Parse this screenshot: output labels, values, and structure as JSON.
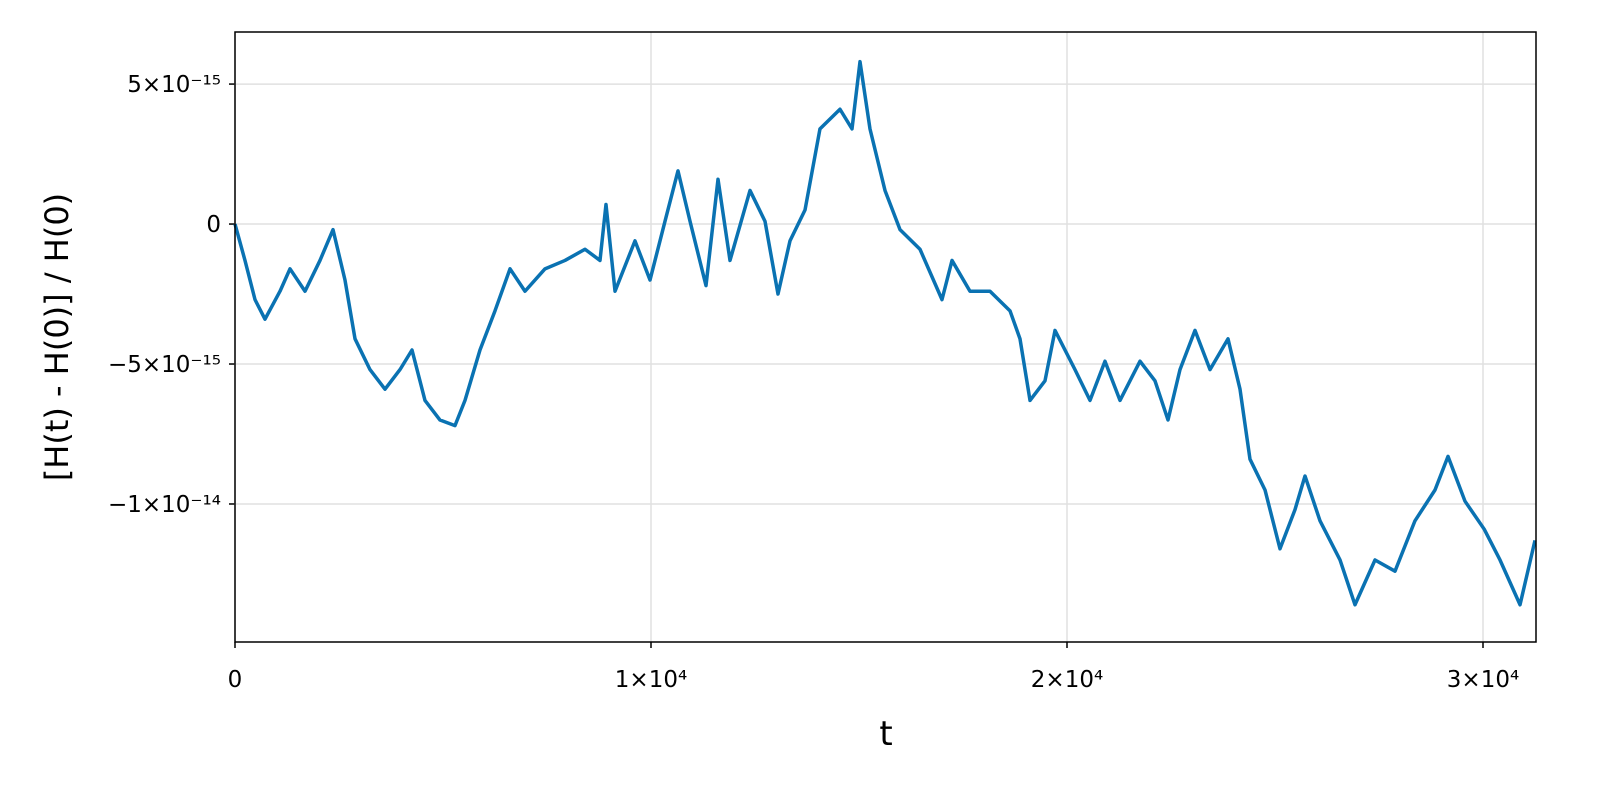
{
  "chart_data": {
    "type": "line",
    "xlabel": "t",
    "ylabel": "[H(t) - H(0)] / H(0)",
    "x": [
      0,
      240,
      481,
      721,
      1082,
      1322,
      1683,
      2043,
      2356,
      2644,
      2885,
      3245,
      3606,
      3966,
      4255,
      4567,
      4928,
      5288,
      5529,
      5889,
      6250,
      6611,
      6971,
      7452,
      7933,
      8413,
      8774,
      8918,
      9135,
      9615,
      9976,
      10337,
      10649,
      10938,
      11322,
      11611,
      11899,
      12380,
      12740,
      13053,
      13341,
      13702,
      14062,
      14543,
      14832,
      15024,
      15264,
      15625,
      15986,
      16466,
      16995,
      17236,
      17668,
      18149,
      18630,
      18870,
      19111,
      19471,
      19712,
      20192,
      20553,
      20913,
      21274,
      21755,
      22115,
      22428,
      22716,
      23077,
      23438,
      23870,
      24159,
      24399,
      24760,
      25120,
      25481,
      25721,
      26082,
      26563,
      26923,
      27404,
      27885,
      28365,
      28846,
      29159,
      29567,
      30029,
      30409,
      30890,
      31250
    ],
    "series": [
      {
        "name": "H",
        "color": "#0a72b2",
        "values": [
          0,
          -1.3e-15,
          -2.7e-15,
          -3.4e-15,
          -2.4e-15,
          -1.6e-15,
          -2.4e-15,
          -1.3e-15,
          -2e-16,
          -2e-15,
          -4.1e-15,
          -5.2e-15,
          -5.9e-15,
          -5.2e-15,
          -4.5e-15,
          -6.3e-15,
          -7e-15,
          -7.2e-15,
          -6.3e-15,
          -4.5e-15,
          -3.1e-15,
          -1.6e-15,
          -2.4e-15,
          -1.6e-15,
          -1.3e-15,
          -9e-16,
          -1.3e-15,
          7e-16,
          -2.4e-15,
          -6e-16,
          -2e-15,
          1e-16,
          1.9e-15,
          1e-16,
          -2.2e-15,
          1.6e-15,
          -1.3e-15,
          1.2e-15,
          1e-16,
          -2.5e-15,
          -6e-16,
          5e-16,
          3.4e-15,
          4.1e-15,
          3.4e-15,
          5.8e-15,
          3.4e-15,
          1.2e-15,
          -2e-16,
          -9e-16,
          -2.7e-15,
          -1.3e-15,
          -2.4e-15,
          -2.4e-15,
          -3.1e-15,
          -4.1e-15,
          -6.3e-15,
          -5.6e-15,
          -3.8e-15,
          -5.2e-15,
          -6.3e-15,
          -4.9e-15,
          -6.3e-15,
          -4.9e-15,
          -5.6e-15,
          -7e-15,
          -5.2e-15,
          -3.8e-15,
          -5.2e-15,
          -4.1e-15,
          -5.9e-15,
          -8.4e-15,
          -9.5e-15,
          -1.16e-14,
          -1.02e-14,
          -9e-15,
          -1.06e-14,
          -1.2e-14,
          -1.36e-14,
          -1.2e-14,
          -1.24e-14,
          -1.06e-14,
          -9.5e-15,
          -8.3e-15,
          -9.9e-15,
          -1.09e-14,
          -1.2e-14,
          -1.36e-14,
          -1.13e-14
        ]
      }
    ],
    "xlim": [
      0,
      31274
    ],
    "ylim": [
      -1.493e-14,
      6.86e-15
    ],
    "xticks": [
      0,
      {
        "value": 10000,
        "label": "1×10⁴"
      },
      {
        "value": 20000,
        "label": "2×10⁴"
      },
      {
        "value": 30000,
        "label": "3×10⁴"
      }
    ],
    "yticks": [
      {
        "value": -1e-14,
        "label": "−1×10⁻¹⁴"
      },
      {
        "value": -5e-15,
        "label": "−5×10⁻¹⁵"
      },
      0,
      {
        "value": 5e-15,
        "label": "5×10⁻¹⁵"
      }
    ],
    "grid": true
  }
}
